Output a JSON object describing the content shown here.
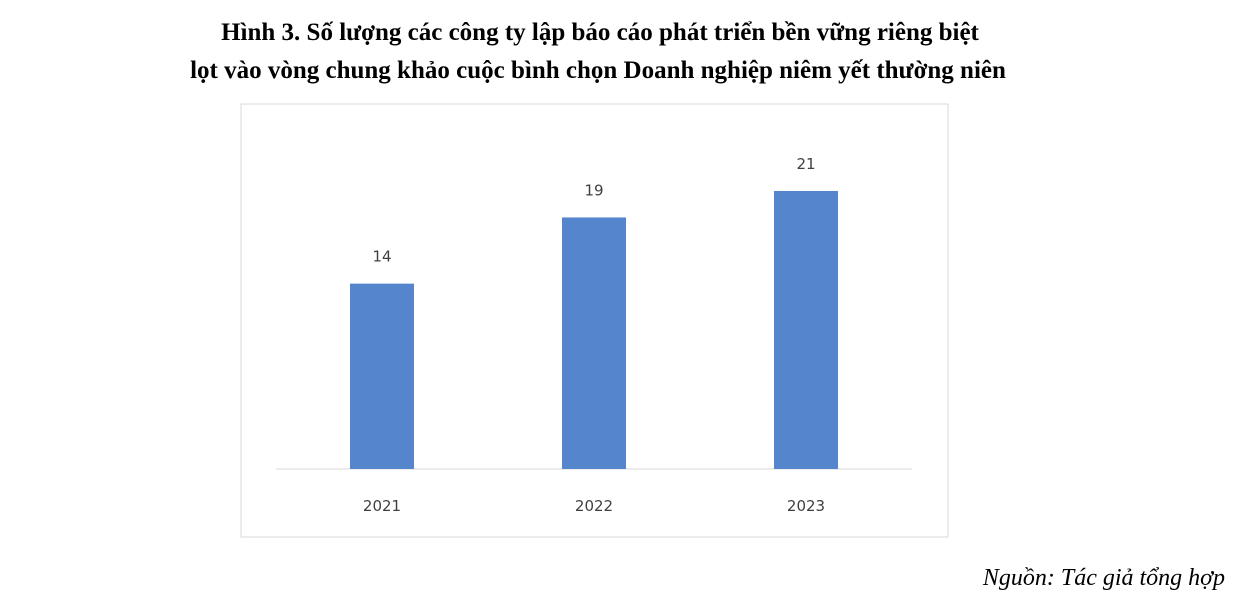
{
  "chart_data": {
    "type": "bar",
    "title": [
      "Hình 3. Số lượng các công ty lập báo cáo phát triển bền vững riêng biệt",
      "lọt vào vòng chung khảo cuộc bình chọn Doanh nghiệp niêm yết thường niên"
    ],
    "categories": [
      "2021",
      "2022",
      "2023"
    ],
    "values": [
      14,
      19,
      21
    ],
    "color": "#5585cc",
    "ylim": [
      0,
      25
    ],
    "source": "Nguồn: Tác giả tổng hợp"
  }
}
